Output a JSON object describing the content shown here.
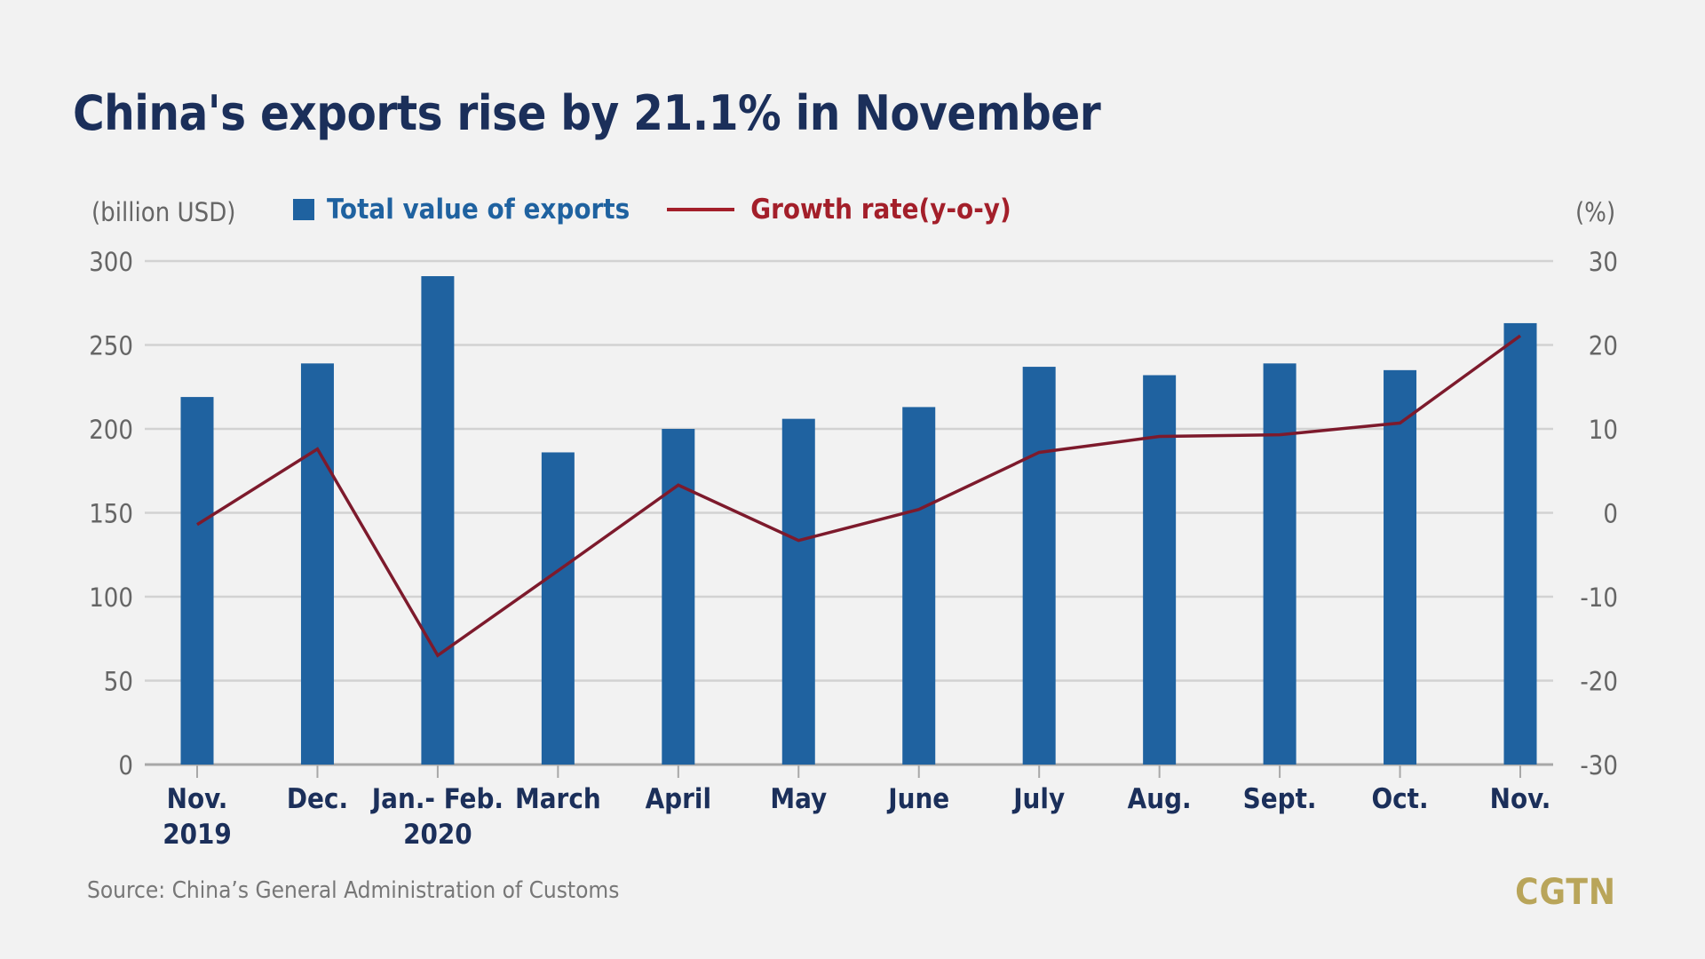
{
  "chart_data": {
    "type": "bar+line",
    "title": "China's exports rise by 21.1% in November",
    "left_axis_label": "(billion USD)",
    "right_axis_label": "(%)",
    "categories": [
      [
        "Nov.",
        "2019"
      ],
      [
        "Dec."
      ],
      [
        "Jan.- Feb.",
        "2020"
      ],
      [
        "March"
      ],
      [
        "April"
      ],
      [
        "May"
      ],
      [
        "June"
      ],
      [
        "July"
      ],
      [
        "Aug."
      ],
      [
        "Sept."
      ],
      [
        "Oct."
      ],
      [
        "Nov."
      ]
    ],
    "series": [
      {
        "name": "Total value of exports",
        "type": "bar",
        "axis": "left",
        "color": "#1f62a0",
        "values": [
          219,
          239,
          291,
          186,
          200,
          206,
          213,
          237,
          232,
          239,
          235,
          263
        ]
      },
      {
        "name": "Growth rate(y-o-y)",
        "type": "line",
        "axis": "right",
        "color": "#7d1a2c",
        "values": [
          -1.4,
          7.6,
          -17.0,
          -6.9,
          3.3,
          -3.3,
          0.4,
          7.2,
          9.1,
          9.3,
          10.7,
          21.1
        ]
      }
    ],
    "ylim_left": [
      0,
      300
    ],
    "yticks_left": [
      "0",
      "50",
      "100",
      "150",
      "200",
      "250",
      "300"
    ],
    "ylim_right": [
      -30,
      30
    ],
    "yticks_right": [
      "-30",
      "-20",
      "-10",
      "0",
      "10",
      "20",
      "30"
    ],
    "grid": true,
    "legend_position": "top"
  },
  "source": "Source: China’s General Administration of Customs",
  "logo": "CGTN"
}
